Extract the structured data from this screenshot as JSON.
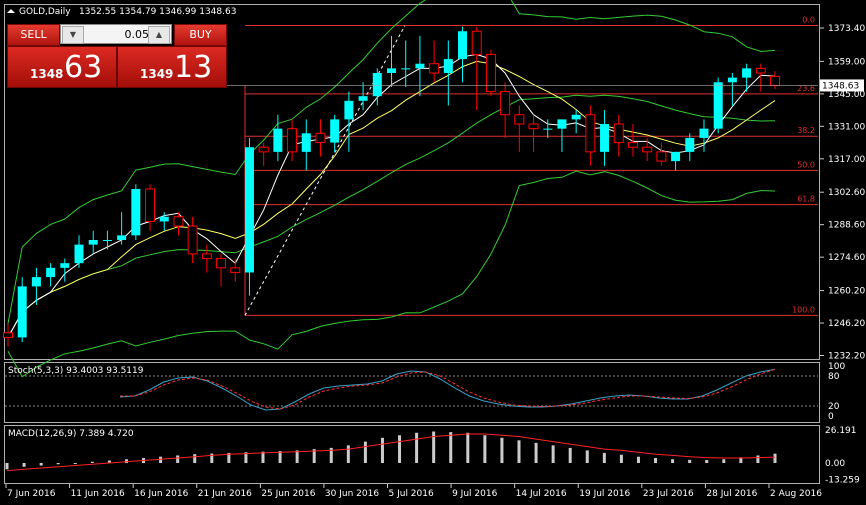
{
  "header": {
    "symbol": "GOLD,Daily",
    "ohlc": "1352.55 1354.79 1346.99 1348.63"
  },
  "trade_panel": {
    "sell_label": "SELL",
    "buy_label": "BUY",
    "volume": "0.05",
    "sell_price_small": "1348",
    "sell_price_big": "63",
    "buy_price_small": "1349",
    "buy_price_big": "13"
  },
  "colors": {
    "bull": "#00ffff",
    "bear": "#ff0000",
    "fib": "#e03030",
    "bands": "#33cc33",
    "ma_fast": "#ffffff",
    "ma_slow": "#ffff66",
    "stoch_main": "#3aa0c8",
    "stoch_signal": "#ff3333",
    "macd_signal": "#ff2222",
    "macd_hist": "#cccccc"
  },
  "chart_data": [
    {
      "type": "candlestick",
      "ylim": [
        1232.2,
        1380
      ],
      "y_ticks": [
        "1373.40",
        "1359.00",
        "1345.00",
        "1331.00",
        "1317.00",
        "1302.60",
        "1288.60",
        "1274.60",
        "1260.20",
        "1246.20",
        "1232.20"
      ],
      "current_price": "1348.63",
      "x_tick_labels": [
        "7 Jun 2016",
        "11 Jun 2016",
        "16 Jun 2016",
        "21 Jun 2016",
        "25 Jun 2016",
        "30 Jun 2016",
        "5 Jul 2016",
        "9 Jul 2016",
        "14 Jul 2016",
        "19 Jul 2016",
        "23 Jul 2016",
        "28 Jul 2016",
        "2 Aug 2016"
      ],
      "fibonacci": {
        "levels": [
          "0.0",
          "23.6",
          "38.2",
          "50.0",
          "61.8",
          "100.0"
        ],
        "high": 1374.5,
        "low": 1249.5
      },
      "candles": [
        [
          1242,
          1246,
          1236,
          1240
        ],
        [
          1240,
          1266,
          1238,
          1262
        ],
        [
          1262,
          1270,
          1254,
          1266
        ],
        [
          1266,
          1272,
          1262,
          1270
        ],
        [
          1270,
          1274,
          1264,
          1272
        ],
        [
          1272,
          1284,
          1270,
          1280
        ],
        [
          1280,
          1286,
          1276,
          1282
        ],
        [
          1282,
          1286,
          1278,
          1282
        ],
        [
          1282,
          1294,
          1280,
          1284
        ],
        [
          1284,
          1306,
          1282,
          1304
        ],
        [
          1304,
          1306,
          1286,
          1290
        ],
        [
          1290,
          1294,
          1286,
          1292
        ],
        [
          1292,
          1294,
          1284,
          1288
        ],
        [
          1288,
          1292,
          1272,
          1276
        ],
        [
          1276,
          1280,
          1268,
          1274
        ],
        [
          1274,
          1276,
          1262,
          1270
        ],
        [
          1270,
          1274,
          1264,
          1268
        ],
        [
          1268,
          1326,
          1258,
          1322
        ],
        [
          1322,
          1324,
          1314,
          1320
        ],
        [
          1320,
          1336,
          1316,
          1330
        ],
        [
          1330,
          1334,
          1316,
          1320
        ],
        [
          1320,
          1334,
          1312,
          1328
        ],
        [
          1328,
          1334,
          1318,
          1324
        ],
        [
          1324,
          1336,
          1320,
          1334
        ],
        [
          1334,
          1346,
          1320,
          1342
        ],
        [
          1342,
          1350,
          1338,
          1344
        ],
        [
          1344,
          1356,
          1340,
          1354
        ],
        [
          1354,
          1370,
          1348,
          1356
        ],
        [
          1356,
          1368,
          1348,
          1356
        ],
        [
          1356,
          1370,
          1344,
          1358
        ],
        [
          1358,
          1368,
          1350,
          1354
        ],
        [
          1354,
          1368,
          1340,
          1360
        ],
        [
          1360,
          1374,
          1350,
          1372
        ],
        [
          1372,
          1374,
          1338,
          1362
        ],
        [
          1362,
          1364,
          1344,
          1346
        ],
        [
          1346,
          1350,
          1326,
          1336
        ],
        [
          1336,
          1340,
          1320,
          1332
        ],
        [
          1332,
          1336,
          1320,
          1330
        ],
        [
          1330,
          1334,
          1326,
          1330
        ],
        [
          1330,
          1334,
          1320,
          1334
        ],
        [
          1334,
          1338,
          1328,
          1336
        ],
        [
          1336,
          1340,
          1314,
          1320
        ],
        [
          1320,
          1338,
          1314,
          1332
        ],
        [
          1332,
          1336,
          1318,
          1324
        ],
        [
          1324,
          1332,
          1318,
          1322
        ],
        [
          1322,
          1326,
          1316,
          1320
        ],
        [
          1320,
          1324,
          1314,
          1316
        ],
        [
          1316,
          1320,
          1312,
          1320
        ],
        [
          1320,
          1328,
          1316,
          1326
        ],
        [
          1326,
          1334,
          1320,
          1330
        ],
        [
          1330,
          1352,
          1328,
          1350
        ],
        [
          1350,
          1354,
          1340,
          1352
        ],
        [
          1352,
          1358,
          1346,
          1356
        ],
        [
          1356,
          1358,
          1346,
          1354
        ],
        [
          1352.55,
          1354.79,
          1346.99,
          1348.63
        ]
      ],
      "indicators": [
        "SMA",
        "SMA",
        "Bollinger Bands"
      ]
    },
    {
      "type": "line",
      "title": "Stoch(5,3,3) 93.4003 93.5119",
      "ylim": [
        0,
        100
      ],
      "y_ticks": [
        "100",
        "80",
        "20",
        "0"
      ],
      "levels": [
        80,
        20
      ],
      "series": [
        {
          "name": "main",
          "values": [
            38,
            40,
            52,
            68,
            76,
            78,
            70,
            56,
            40,
            22,
            12,
            14,
            28,
            44,
            56,
            60,
            62,
            64,
            70,
            84,
            90,
            88,
            74,
            56,
            40,
            30,
            24,
            20,
            18,
            18,
            20,
            24,
            30,
            36,
            40,
            42,
            40,
            36,
            34,
            34,
            40,
            52,
            66,
            80,
            88,
            93.4
          ]
        },
        {
          "name": "signal",
          "values": [
            40,
            40,
            48,
            62,
            72,
            76,
            72,
            60,
            46,
            30,
            18,
            14,
            22,
            38,
            50,
            56,
            60,
            62,
            66,
            78,
            86,
            88,
            80,
            64,
            48,
            36,
            28,
            22,
            20,
            19,
            20,
            22,
            26,
            32,
            36,
            40,
            40,
            38,
            36,
            35,
            38,
            46,
            58,
            72,
            84,
            93.5
          ]
        }
      ]
    },
    {
      "type": "bar",
      "title": "MACD(12,26,9) 7.389 4.720",
      "ylim": [
        -13.259,
        26.191
      ],
      "y_ticks": [
        "26.191",
        "0.00",
        "-13.259"
      ],
      "series": [
        {
          "name": "macd",
          "values": [
            -5,
            -3,
            -2,
            -1,
            0,
            1,
            2,
            3,
            4,
            5,
            6,
            7,
            7.5,
            8,
            8.5,
            9,
            9.5,
            10,
            11,
            12,
            14,
            17,
            20,
            22,
            24,
            25,
            24.5,
            24,
            22,
            20,
            18,
            16,
            14,
            12,
            10,
            8,
            6.5,
            5,
            4,
            3,
            2.5,
            2.4,
            3,
            4.5,
            6,
            7.389
          ]
        },
        {
          "name": "signal",
          "values": [
            -6,
            -5,
            -4,
            -3,
            -2,
            -1,
            0,
            1,
            2,
            3,
            4,
            5,
            6,
            7,
            7.5,
            8,
            8.5,
            9,
            9.5,
            10,
            11,
            13,
            15,
            17,
            19,
            21,
            22,
            23,
            23,
            22,
            21,
            19,
            17,
            15,
            13,
            11,
            10,
            8.5,
            7,
            6,
            5,
            4.3,
            4,
            4,
            4.3,
            4.72
          ]
        }
      ]
    }
  ]
}
